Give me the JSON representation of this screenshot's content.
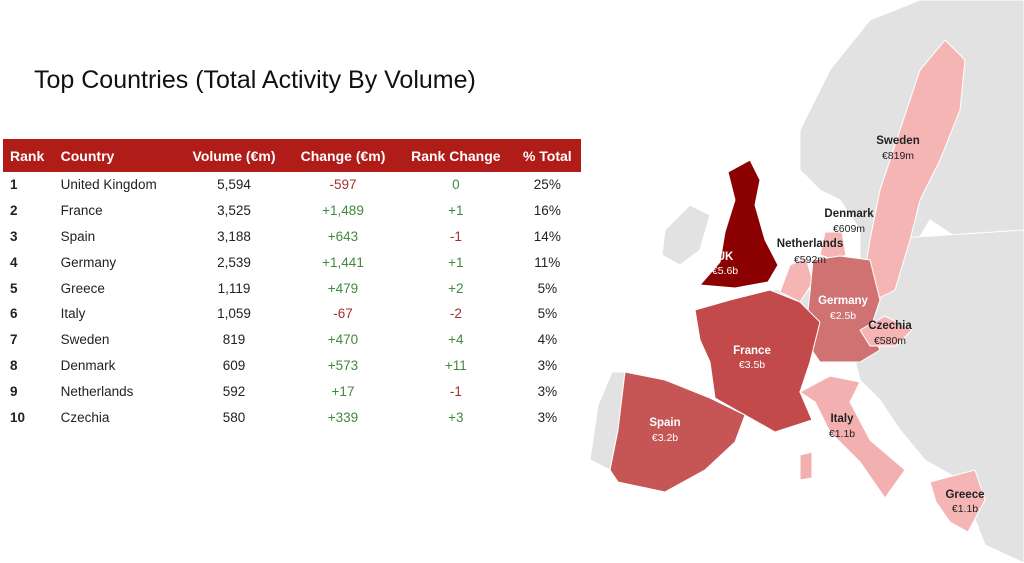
{
  "title": "Top Countries (Total Activity By Volume)",
  "colors": {
    "header": "#b01c18",
    "negative": "#a3302a",
    "positive": "#3f8a3f",
    "land": "#e2e2e2"
  },
  "chart_data": {
    "type": "table",
    "columns": [
      "Rank",
      "Country",
      "Volume (€m)",
      "Change (€m)",
      "Rank Change",
      "% Total"
    ],
    "rows": [
      [
        "1",
        "United Kingdom",
        "5,594",
        "-597",
        "0",
        "25%"
      ],
      [
        "2",
        "France",
        "3,525",
        "+1,489",
        "+1",
        "16%"
      ],
      [
        "3",
        "Spain",
        "3,188",
        "+643",
        "-1",
        "14%"
      ],
      [
        "4",
        "Germany",
        "2,539",
        "+1,441",
        "+1",
        "11%"
      ],
      [
        "5",
        "Greece",
        "1,119",
        "+479",
        "+2",
        "5%"
      ],
      [
        "6",
        "Italy",
        "1,059",
        "-67",
        "-2",
        "5%"
      ],
      [
        "7",
        "Sweden",
        "819",
        "+470",
        "+4",
        "4%"
      ],
      [
        "8",
        "Denmark",
        "609",
        "+573",
        "+11",
        "3%"
      ],
      [
        "9",
        "Netherlands",
        "592",
        "+17",
        "-1",
        "3%"
      ],
      [
        "10",
        "Czechia",
        "580",
        "+339",
        "+3",
        "3%"
      ]
    ],
    "map_labels": [
      {
        "name": "UK",
        "value": "€5.6b"
      },
      {
        "name": "France",
        "value": "€3.5b"
      },
      {
        "name": "Spain",
        "value": "€3.2b"
      },
      {
        "name": "Germany",
        "value": "€2.5b"
      },
      {
        "name": "Greece",
        "value": "€1.1b"
      },
      {
        "name": "Italy",
        "value": "€1.1b"
      },
      {
        "name": "Sweden",
        "value": "€819m"
      },
      {
        "name": "Denmark",
        "value": "€609m"
      },
      {
        "name": "Netherlands",
        "value": "€592m"
      },
      {
        "name": "Czechia",
        "value": "€580m"
      }
    ]
  }
}
